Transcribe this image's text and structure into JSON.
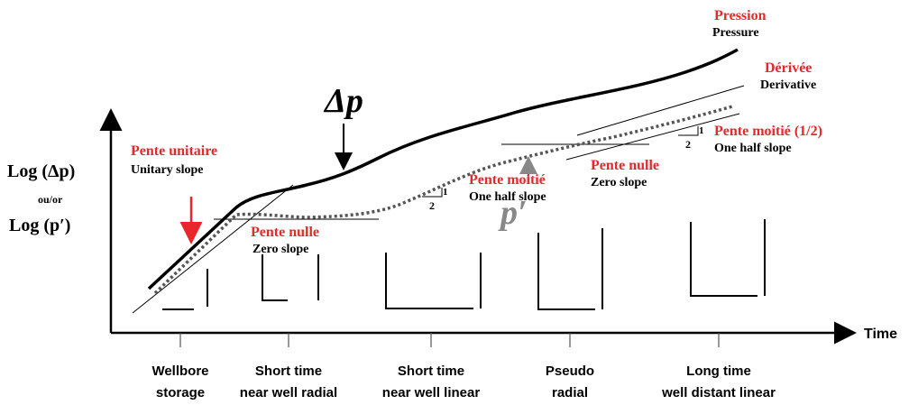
{
  "y_axis": {
    "line1": "Log (Δp)",
    "line2": "ou/or",
    "line3": "Log (p′)"
  },
  "x_axis": {
    "label": "Time"
  },
  "curves": {
    "pressure": {
      "fr": "Pression",
      "en": "Pressure"
    },
    "derivative": {
      "fr": "Dérivée",
      "en": "Derivative"
    },
    "delta_p": "Δp",
    "p_prime": "p′"
  },
  "annotations": [
    {
      "fr": "Pente unitaire",
      "en": "Unitary slope"
    },
    {
      "fr": "Pente nulle",
      "en": "Zero slope"
    },
    {
      "fr": "Pente moitié",
      "en": "One half slope"
    },
    {
      "fr": "Pente nulle",
      "en": "Zero slope"
    },
    {
      "fr": "Pente moitié (1/2)",
      "en": "One half slope"
    }
  ],
  "slope_markers": [
    {
      "rise": "1",
      "run": "2"
    },
    {
      "rise": "1",
      "run": "2"
    }
  ],
  "regimes": [
    [
      "Wellbore",
      "storage"
    ],
    [
      "Short time",
      "near well radial"
    ],
    [
      "Short time",
      "near well linear"
    ],
    [
      "Pseudo",
      "radial"
    ],
    [
      "Long time",
      "well distant linear"
    ]
  ]
}
